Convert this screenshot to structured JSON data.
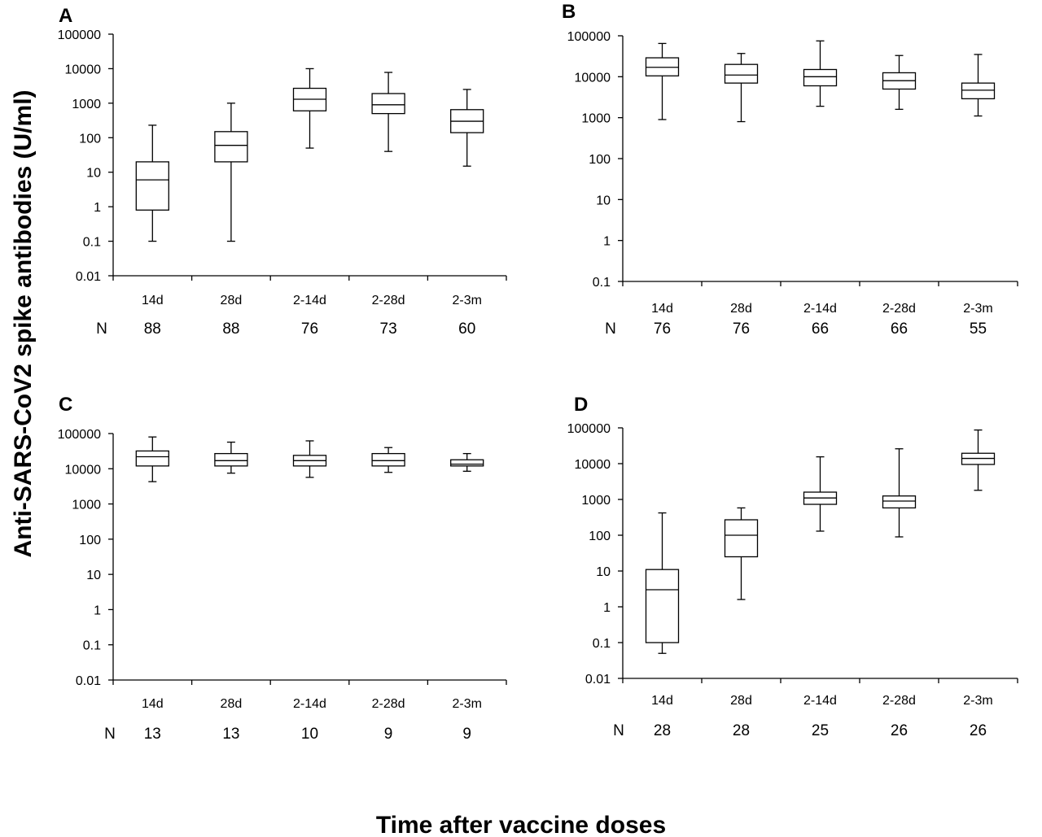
{
  "figure": {
    "ylabel": "Anti-SARS-CoV2 spike antibodies (U/ml)",
    "xlabel": "Time after vaccine doses",
    "n_label": "N"
  },
  "chart_data": [
    {
      "panel": "A",
      "type": "box",
      "scale": "log",
      "ylim": [
        0.01,
        100000
      ],
      "yticks": [
        "0.01",
        "0.1",
        "1",
        "10",
        "100",
        "1000",
        "10000",
        "100000"
      ],
      "categories": [
        "14d",
        "28d",
        "2-14d",
        "2-28d",
        "2-3m"
      ],
      "n": [
        "88",
        "88",
        "76",
        "73",
        "60"
      ],
      "boxes": [
        {
          "min": 0.1,
          "q1": 0.8,
          "median": 6,
          "q3": 20,
          "max": 230
        },
        {
          "min": 0.1,
          "q1": 20,
          "median": 60,
          "q3": 150,
          "max": 1000
        },
        {
          "min": 50,
          "q1": 600,
          "median": 1300,
          "q3": 2700,
          "max": 10000
        },
        {
          "min": 40,
          "q1": 500,
          "median": 900,
          "q3": 1900,
          "max": 7800
        },
        {
          "min": 15,
          "q1": 140,
          "median": 300,
          "q3": 650,
          "max": 2500
        }
      ]
    },
    {
      "panel": "B",
      "type": "box",
      "scale": "log",
      "ylim": [
        0.1,
        100000
      ],
      "yticks": [
        "0.1",
        "1",
        "10",
        "100",
        "1000",
        "10000",
        "100000"
      ],
      "categories": [
        "14d",
        "28d",
        "2-14d",
        "2-28d",
        "2-3m"
      ],
      "n": [
        "76",
        "76",
        "66",
        "66",
        "55"
      ],
      "boxes": [
        {
          "min": 900,
          "q1": 10500,
          "median": 17000,
          "q3": 29000,
          "max": 65000
        },
        {
          "min": 800,
          "q1": 7000,
          "median": 11000,
          "q3": 20000,
          "max": 37000
        },
        {
          "min": 1900,
          "q1": 6000,
          "median": 10000,
          "q3": 15000,
          "max": 75000
        },
        {
          "min": 1600,
          "q1": 5000,
          "median": 8000,
          "q3": 12500,
          "max": 33000
        },
        {
          "min": 1100,
          "q1": 2900,
          "median": 4700,
          "q3": 7000,
          "max": 35000
        }
      ]
    },
    {
      "panel": "C",
      "type": "box",
      "scale": "log",
      "ylim": [
        0.01,
        100000
      ],
      "yticks": [
        "0.01",
        "0.1",
        "1",
        "10",
        "100",
        "1000",
        "10000",
        "100000"
      ],
      "categories": [
        "14d",
        "28d",
        "2-14d",
        "2-28d",
        "2-3m"
      ],
      "n": [
        "13",
        "13",
        "10",
        "9",
        "9"
      ],
      "boxes": [
        {
          "min": 4300,
          "q1": 12000,
          "median": 22000,
          "q3": 32000,
          "max": 80000
        },
        {
          "min": 7500,
          "q1": 12000,
          "median": 17000,
          "q3": 27000,
          "max": 57000
        },
        {
          "min": 5700,
          "q1": 12000,
          "median": 17000,
          "q3": 24000,
          "max": 62000
        },
        {
          "min": 7900,
          "q1": 12000,
          "median": 17000,
          "q3": 27000,
          "max": 40000
        },
        {
          "min": 8500,
          "q1": 12000,
          "median": 13500,
          "q3": 18000,
          "max": 27000
        }
      ]
    },
    {
      "panel": "D",
      "type": "box",
      "scale": "log",
      "ylim": [
        0.01,
        100000
      ],
      "yticks": [
        "0.01",
        "0.1",
        "1",
        "10",
        "100",
        "1000",
        "10000",
        "100000"
      ],
      "categories": [
        "14d",
        "28d",
        "2-14d",
        "2-28d",
        "2-3m"
      ],
      "n": [
        "28",
        "28",
        "25",
        "26",
        "26"
      ],
      "boxes": [
        {
          "min": 0.05,
          "q1": 0.1,
          "median": 3,
          "q3": 11,
          "max": 420
        },
        {
          "min": 1.6,
          "q1": 25,
          "median": 100,
          "q3": 270,
          "max": 580
        },
        {
          "min": 130,
          "q1": 730,
          "median": 1100,
          "q3": 1600,
          "max": 15500
        },
        {
          "min": 90,
          "q1": 580,
          "median": 900,
          "q3": 1250,
          "max": 26000
        },
        {
          "min": 1800,
          "q1": 9500,
          "median": 14000,
          "q3": 19500,
          "max": 87000
        }
      ]
    }
  ]
}
